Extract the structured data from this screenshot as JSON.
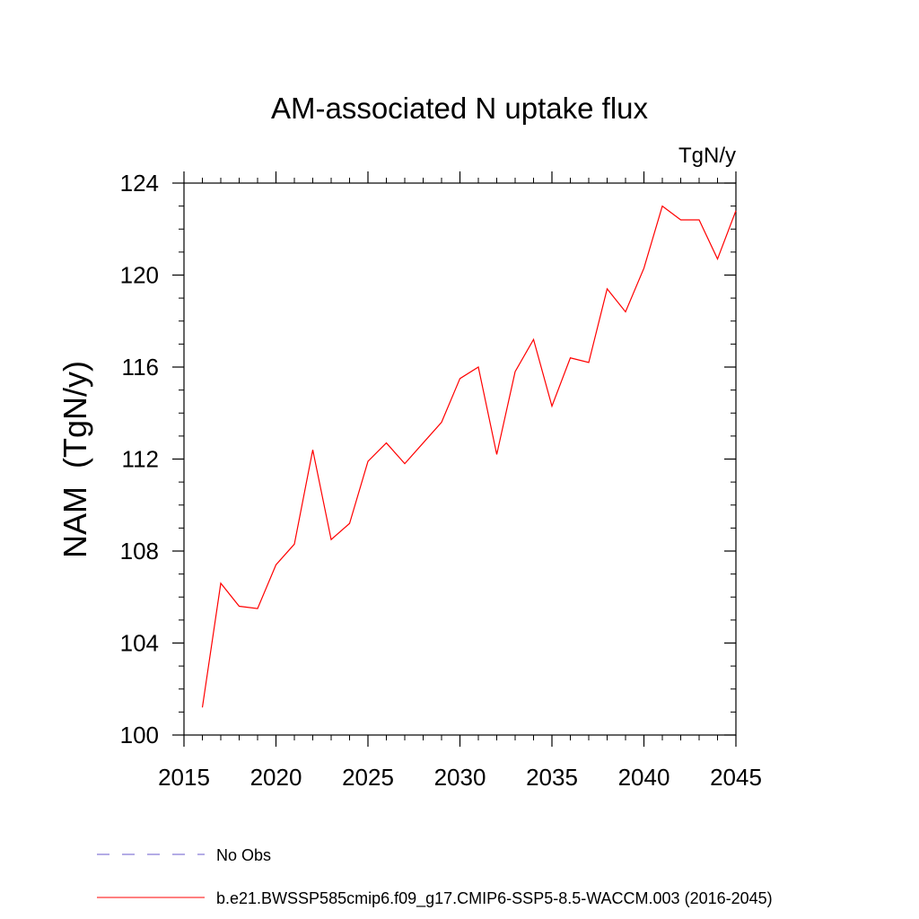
{
  "chart_data": {
    "type": "line",
    "title": "AM-associated N uptake flux",
    "units_label": "TgN/y",
    "xlabel": "",
    "ylabel": "NAM  (TgN/y)",
    "xlim": [
      2015,
      2045
    ],
    "ylim": [
      100,
      124
    ],
    "x_ticks": [
      2015,
      2020,
      2025,
      2030,
      2035,
      2040,
      2045
    ],
    "y_ticks": [
      100,
      104,
      108,
      112,
      116,
      120,
      124
    ],
    "x_minor_step": 1,
    "y_minor_step": 1,
    "grid": false,
    "legend_position": "bottom",
    "series": [
      {
        "name": "b.e21.BWSSP585cmip6.f09_g17.CMIP6-SSP5-8.5-WACCM.003 (2016-2045)",
        "color": "#ff0000",
        "dash": "solid",
        "x": [
          2016,
          2017,
          2018,
          2019,
          2020,
          2021,
          2022,
          2023,
          2024,
          2025,
          2026,
          2027,
          2028,
          2029,
          2030,
          2031,
          2032,
          2033,
          2034,
          2035,
          2036,
          2037,
          2038,
          2039,
          2040,
          2041,
          2042,
          2043,
          2044,
          2045
        ],
        "y": [
          101.2,
          106.6,
          105.6,
          105.5,
          107.4,
          108.3,
          112.4,
          108.5,
          109.2,
          111.9,
          112.7,
          111.8,
          112.7,
          113.6,
          115.5,
          116.0,
          112.2,
          115.8,
          117.2,
          114.3,
          116.4,
          116.2,
          119.4,
          118.4,
          120.3,
          123.0,
          122.4,
          122.4,
          120.7,
          122.8
        ]
      }
    ],
    "legend": [
      {
        "label": "No Obs",
        "color": "#6a5acd",
        "dash": "dashed"
      },
      {
        "label": "b.e21.BWSSP585cmip6.f09_g17.CMIP6-SSP5-8.5-WACCM.003 (2016-2045)",
        "color": "#ff0000",
        "dash": "solid"
      }
    ]
  }
}
